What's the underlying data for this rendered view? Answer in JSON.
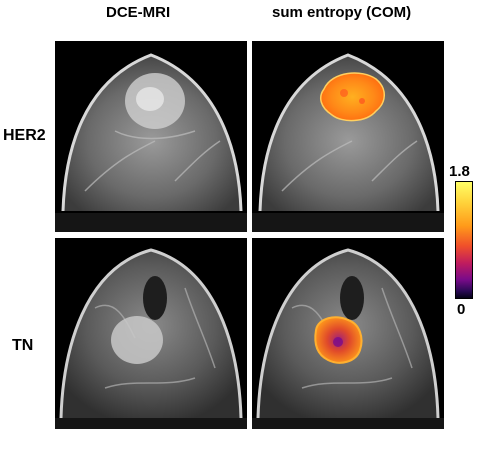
{
  "columns": {
    "left": "DCE-MRI",
    "right": "sum entropy (COM)"
  },
  "rows": {
    "top": "HER2",
    "bottom": "TN"
  },
  "colorbar": {
    "max": "1.8",
    "min": "0"
  }
}
